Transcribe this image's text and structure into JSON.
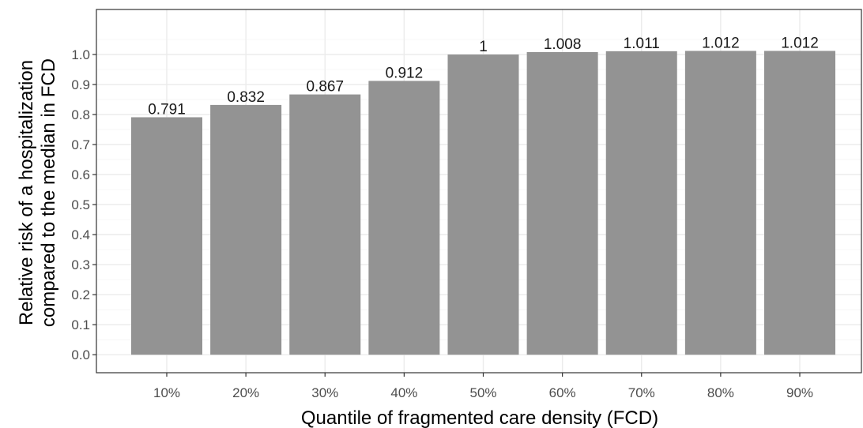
{
  "chart_data": {
    "type": "bar",
    "categories": [
      "10%",
      "20%",
      "30%",
      "40%",
      "50%",
      "60%",
      "70%",
      "80%",
      "90%"
    ],
    "values": [
      0.791,
      0.832,
      0.867,
      0.912,
      1,
      1.008,
      1.011,
      1.012,
      1.012
    ],
    "value_labels": [
      "0.791",
      "0.832",
      "0.867",
      "0.912",
      "1",
      "1.008",
      "1.011",
      "1.012",
      "1.012"
    ],
    "xlabel": "Quantile of fragmented care density (FCD)",
    "ylabel_lines": [
      "Relative risk of a hospitalization",
      "compared to the median in FCD"
    ],
    "yticks": [
      "0.0",
      "0.1",
      "0.2",
      "0.3",
      "0.4",
      "0.5",
      "0.6",
      "0.7",
      "0.8",
      "0.9",
      "1.0"
    ],
    "ylim": [
      -0.06,
      1.15
    ],
    "grid": true,
    "legend": "none",
    "colors": {
      "bar": "#939393",
      "panel_border": "#333333",
      "grid_major": "#ebebeb",
      "grid_minor": "#f5f5f5"
    }
  }
}
